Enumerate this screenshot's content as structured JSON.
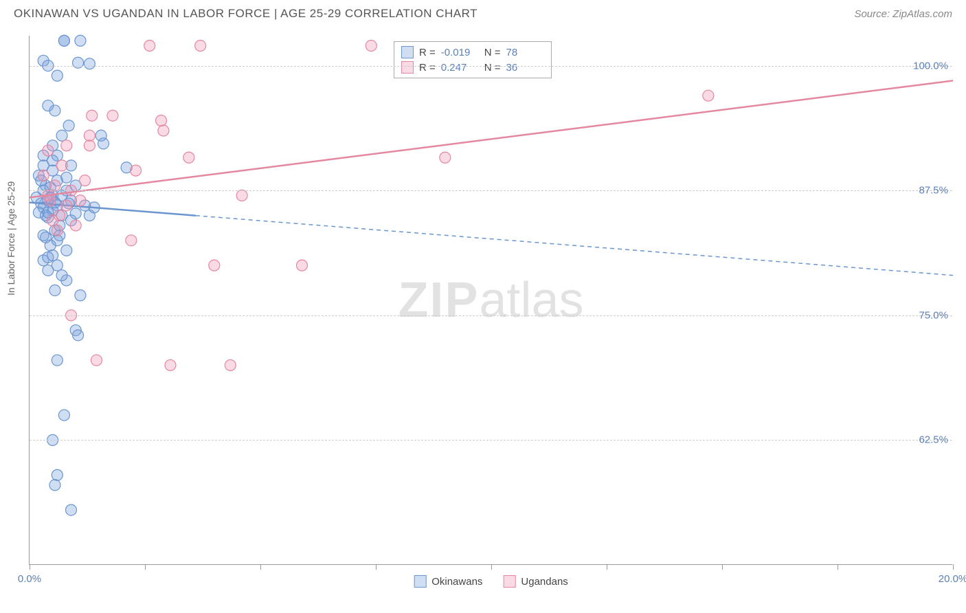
{
  "header": {
    "title": "OKINAWAN VS UGANDAN IN LABOR FORCE | AGE 25-29 CORRELATION CHART",
    "source": "Source: ZipAtlas.com"
  },
  "ylabel": "In Labor Force | Age 25-29",
  "watermark_zip": "ZIP",
  "watermark_atlas": "atlas",
  "chart": {
    "type": "scatter",
    "xlim": [
      0,
      20
    ],
    "ylim": [
      50,
      103
    ],
    "xticks": [
      0,
      2.5,
      5,
      7.5,
      10,
      12.5,
      15,
      17.5,
      20
    ],
    "xtick_labels_shown": {
      "0": "0.0%",
      "20": "20.0%"
    },
    "yticks": [
      62.5,
      75.0,
      87.5,
      100.0
    ],
    "ytick_labels": [
      "62.5%",
      "75.0%",
      "87.5%",
      "100.0%"
    ],
    "grid_color": "#cccccc",
    "background_color": "#ffffff",
    "marker_radius": 8,
    "marker_stroke_width": 1.2,
    "line_width": 2.5,
    "series": [
      {
        "name": "Okinawans",
        "fill": "rgba(120,160,220,0.35)",
        "stroke": "#6a95d0",
        "R": "-0.019",
        "N": "78",
        "trend": {
          "x1": 0,
          "y1": 86.3,
          "x2": 20,
          "y2": 79.0,
          "solid_until_x": 3.6
        },
        "points": [
          [
            0.75,
            102.5
          ],
          [
            0.75,
            102.5
          ],
          [
            1.1,
            102.5
          ],
          [
            0.3,
            100.5
          ],
          [
            1.05,
            100.3
          ],
          [
            1.3,
            100.2
          ],
          [
            0.4,
            96.0
          ],
          [
            0.55,
            95.5
          ],
          [
            0.85,
            94.0
          ],
          [
            0.7,
            93.0
          ],
          [
            1.55,
            93.0
          ],
          [
            1.6,
            92.2
          ],
          [
            0.3,
            91.0
          ],
          [
            0.5,
            90.5
          ],
          [
            0.9,
            90.0
          ],
          [
            2.1,
            89.8
          ],
          [
            0.2,
            89.0
          ],
          [
            0.6,
            88.5
          ],
          [
            0.35,
            88.0
          ],
          [
            0.3,
            87.5
          ],
          [
            0.5,
            87.0
          ],
          [
            0.15,
            86.8
          ],
          [
            0.4,
            86.5
          ],
          [
            0.25,
            86.2
          ],
          [
            0.6,
            86.0
          ],
          [
            0.3,
            85.8
          ],
          [
            0.5,
            85.5
          ],
          [
            0.2,
            85.3
          ],
          [
            0.7,
            85.0
          ],
          [
            0.4,
            84.8
          ],
          [
            0.9,
            84.5
          ],
          [
            0.55,
            83.5
          ],
          [
            0.65,
            83.0
          ],
          [
            0.35,
            82.8
          ],
          [
            0.45,
            82.0
          ],
          [
            0.8,
            81.5
          ],
          [
            0.5,
            81.0
          ],
          [
            0.3,
            80.5
          ],
          [
            0.6,
            80.0
          ],
          [
            0.4,
            79.5
          ],
          [
            0.8,
            78.5
          ],
          [
            0.55,
            77.5
          ],
          [
            1.0,
            73.5
          ],
          [
            1.05,
            73.0
          ],
          [
            0.6,
            70.5
          ],
          [
            0.75,
            65.0
          ],
          [
            0.5,
            62.5
          ],
          [
            0.6,
            59.0
          ],
          [
            0.55,
            58.0
          ],
          [
            0.9,
            55.5
          ],
          [
            1.0,
            85.2
          ],
          [
            1.2,
            86.0
          ],
          [
            1.4,
            85.8
          ],
          [
            0.8,
            87.5
          ],
          [
            0.9,
            86.5
          ],
          [
            0.7,
            87.0
          ],
          [
            0.4,
            100.0
          ],
          [
            0.6,
            99.0
          ],
          [
            0.5,
            92.0
          ],
          [
            1.0,
            88.0
          ],
          [
            0.3,
            83.0
          ],
          [
            0.45,
            86.8
          ],
          [
            0.55,
            86.3
          ],
          [
            0.35,
            85.0
          ],
          [
            0.65,
            84.0
          ],
          [
            0.25,
            88.5
          ],
          [
            0.85,
            86.2
          ],
          [
            0.45,
            87.8
          ],
          [
            0.6,
            82.5
          ],
          [
            0.4,
            80.8
          ],
          [
            0.7,
            79.0
          ],
          [
            1.1,
            77.0
          ],
          [
            0.3,
            90.0
          ],
          [
            0.5,
            89.5
          ],
          [
            0.8,
            88.8
          ],
          [
            0.4,
            85.3
          ],
          [
            0.6,
            91.0
          ],
          [
            1.3,
            85.0
          ]
        ]
      },
      {
        "name": "Ugandans",
        "fill": "rgba(240,150,180,0.35)",
        "stroke": "#e4879f",
        "R": "0.247",
        "N": "36",
        "trend": {
          "x1": 0,
          "y1": 86.8,
          "x2": 20,
          "y2": 98.5,
          "solid_until_x": 20
        },
        "points": [
          [
            2.6,
            102.0
          ],
          [
            3.7,
            102.0
          ],
          [
            7.4,
            102.0
          ],
          [
            14.7,
            97.0
          ],
          [
            9.0,
            90.8
          ],
          [
            1.35,
            95.0
          ],
          [
            1.8,
            95.0
          ],
          [
            2.85,
            94.5
          ],
          [
            2.9,
            93.5
          ],
          [
            1.3,
            92.0
          ],
          [
            3.45,
            90.8
          ],
          [
            2.3,
            89.5
          ],
          [
            4.6,
            87.0
          ],
          [
            2.2,
            82.5
          ],
          [
            4.0,
            80.0
          ],
          [
            5.9,
            80.0
          ],
          [
            0.9,
            75.0
          ],
          [
            1.45,
            70.5
          ],
          [
            3.05,
            70.0
          ],
          [
            4.35,
            70.0
          ],
          [
            0.55,
            88.0
          ],
          [
            0.4,
            87.0
          ],
          [
            0.8,
            86.0
          ],
          [
            1.1,
            86.5
          ],
          [
            0.65,
            85.0
          ],
          [
            0.5,
            84.5
          ],
          [
            1.0,
            84.0
          ],
          [
            0.3,
            89.0
          ],
          [
            0.7,
            90.0
          ],
          [
            1.2,
            88.5
          ],
          [
            0.45,
            86.5
          ],
          [
            0.9,
            87.5
          ],
          [
            0.6,
            83.5
          ],
          [
            1.3,
            93.0
          ],
          [
            0.4,
            91.5
          ],
          [
            0.8,
            92.0
          ]
        ]
      }
    ]
  },
  "legend_top": {
    "r_label": "R =",
    "n_label": "N ="
  },
  "legend_bottom": {
    "items": [
      "Okinawans",
      "Ugandans"
    ]
  },
  "colors": {
    "axis": "#999999",
    "text_axis": "#5b7fb8",
    "title": "#555555",
    "source": "#888888"
  }
}
